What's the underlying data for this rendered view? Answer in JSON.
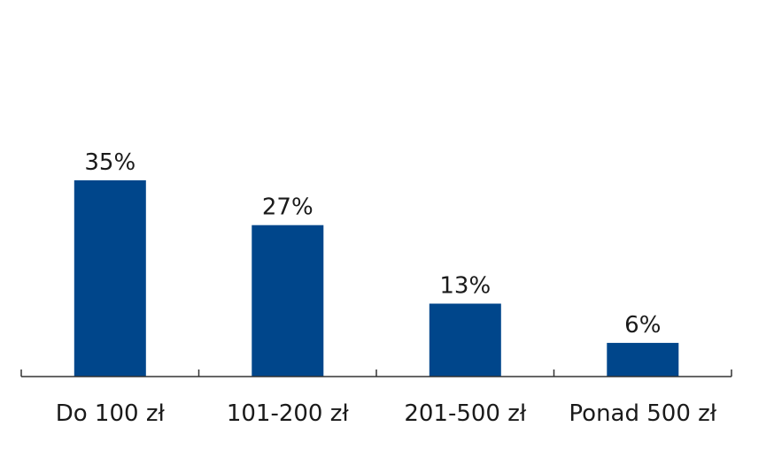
{
  "chart_data": {
    "type": "bar",
    "categories": [
      "Do 100 zł",
      "101-200 zł",
      "201-500 zł",
      "Ponad 500 zł"
    ],
    "values": [
      35,
      27,
      13,
      6
    ],
    "data_labels": [
      "35%",
      "27%",
      "13%",
      "6%"
    ],
    "title": "",
    "xlabel": "",
    "ylabel": "",
    "ylim": [
      0,
      35
    ],
    "grid": false,
    "legend": "none",
    "colors": {
      "bar": "#00468b",
      "axis": "#333333",
      "text": "#1a1a1a"
    }
  }
}
